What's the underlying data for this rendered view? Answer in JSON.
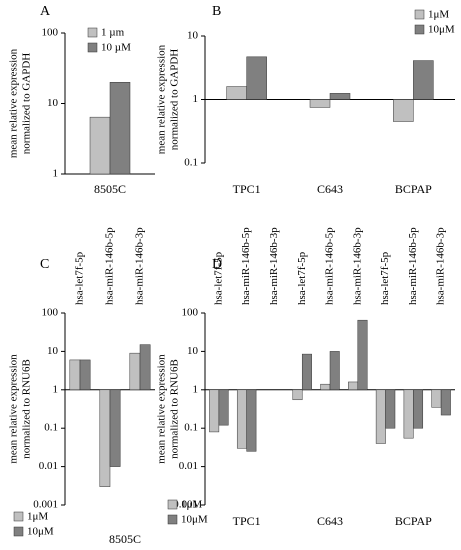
{
  "chart_data": [
    {
      "type": "bar",
      "panel_label": "A",
      "ylabel": [
        "mean relative expression",
        "normalized to GAPDH"
      ],
      "categories": [
        "8505C"
      ],
      "log_scale": true,
      "ylim": [
        1,
        100
      ],
      "yticks": [
        1,
        10,
        100
      ],
      "legend": "top-right",
      "series": [
        {
          "name": "1 µm",
          "color": "#c0c0c0",
          "values": [
            6.4
          ]
        },
        {
          "name": "10 µM",
          "color": "#808080",
          "values": [
            20
          ]
        }
      ]
    },
    {
      "type": "bar",
      "panel_label": "B",
      "ylabel": [
        "mean relative expression",
        "normalized to GAPDH"
      ],
      "categories": [
        "TPC1",
        "C643",
        "BCPAP"
      ],
      "log_scale": true,
      "ylim": [
        0.1,
        10
      ],
      "yticks": [
        0.1,
        1,
        10
      ],
      "legend": "top-right",
      "series": [
        {
          "name": "1μM",
          "color": "#c0c0c0",
          "values": [
            1.6,
            0.75,
            0.45
          ]
        },
        {
          "name": "10μM",
          "color": "#808080",
          "values": [
            4.7,
            1.25,
            4.1
          ]
        }
      ]
    },
    {
      "type": "bar",
      "panel_label": "C",
      "ylabel": [
        "mean relative expression",
        "normalized to RNU6B"
      ],
      "categories": [
        "hsa-let7f-5p",
        "hsa-miR-146b-5p",
        "hsa-miR-146b-3p"
      ],
      "xlabel": "8505C",
      "log_scale": true,
      "ylim": [
        0.001,
        100
      ],
      "yticks": [
        0.001,
        0.01,
        0.1,
        1,
        10,
        100
      ],
      "legend": "bottom-left",
      "series": [
        {
          "name": "1μM",
          "color": "#c0c0c0",
          "values": [
            6,
            0.003,
            9
          ]
        },
        {
          "name": "10μM",
          "color": "#808080",
          "values": [
            6,
            0.01,
            15
          ]
        }
      ]
    },
    {
      "type": "bar",
      "panel_label": "D",
      "ylabel": [
        "mean relative expression",
        "normalized to RNU6B"
      ],
      "categories": [
        "hsa-let7f-5p",
        "hsa-miR-146b-5p",
        "hsa-miR-146b-3p",
        "hsa-let7f-5p",
        "hsa-miR-146b-5p",
        "hsa-miR-146b-3p",
        "hsa-let7f-5p",
        "hsa-miR-146b-5p",
        "hsa-miR-146b-3p"
      ],
      "groups": [
        "TPC1",
        "C643",
        "BCPAP"
      ],
      "log_scale": true,
      "ylim": [
        0.001,
        100
      ],
      "yticks": [
        0.001,
        0.01,
        0.1,
        1,
        10,
        100
      ],
      "legend": "bottom-left",
      "series": [
        {
          "name": "1μM",
          "color": "#c0c0c0",
          "values": [
            0.08,
            0.03,
            null,
            0.55,
            1.4,
            1.6,
            0.04,
            0.055,
            0.35
          ]
        },
        {
          "name": "10μM",
          "color": "#808080",
          "values": [
            0.12,
            0.025,
            null,
            8.5,
            10,
            65,
            0.1,
            0.1,
            0.22
          ]
        }
      ]
    }
  ]
}
